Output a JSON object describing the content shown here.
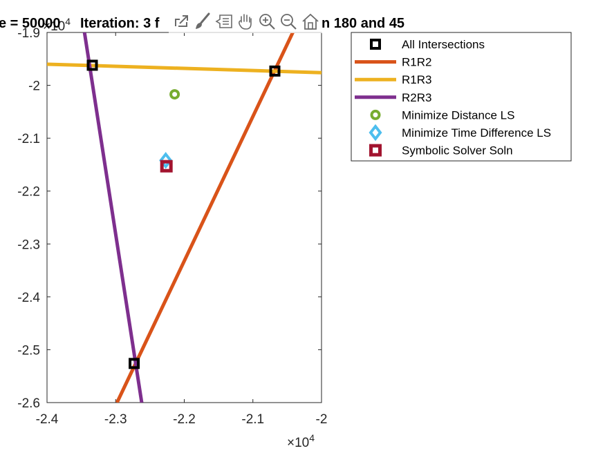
{
  "chart_data": {
    "type": "line",
    "title": "e = 50000 Iteration: 3 f n 180 and 45",
    "xlim": [
      -24000,
      -20000
    ],
    "ylim": [
      -26000,
      -19000
    ],
    "x_ticks": [
      -24000,
      -23000,
      -22000,
      -21000,
      -20000
    ],
    "y_ticks": [
      -26000,
      -25000,
      -24000,
      -23000,
      -22000,
      -21000,
      -20000,
      -19000
    ],
    "x_tick_labels": [
      "-2.4",
      "-2.3",
      "-2.2",
      "-2.1",
      "-2"
    ],
    "y_tick_labels": [
      "-2.6",
      "-2.5",
      "-2.4",
      "-2.3",
      "-2.2",
      "-2.1",
      "-2",
      "-1.9"
    ],
    "x_exponent": "×10^4",
    "y_exponent": "×10^4",
    "legend_location": "outside top-right",
    "series": [
      {
        "name": "R1R2",
        "type": "line",
        "color": "#D95319",
        "x": [
          -22980,
          -20400
        ],
        "y": [
          -26000,
          -18950
        ]
      },
      {
        "name": "R1R3",
        "type": "line",
        "color": "#EDB120",
        "x": [
          -24000,
          -20000
        ],
        "y": [
          -19600,
          -19760
        ]
      },
      {
        "name": "R2R3",
        "type": "line",
        "color": "#7E2F8E",
        "x": [
          -23460,
          -22620
        ],
        "y": [
          -18950,
          -26000
        ]
      },
      {
        "name": "All Intersections",
        "type": "marker",
        "marker": "square",
        "color": "#000000",
        "x": [
          -23340,
          -20680,
          -22730
        ],
        "y": [
          -19620,
          -19730,
          -25260
        ]
      },
      {
        "name": "Minimize Distance LS",
        "type": "marker",
        "marker": "circle",
        "color": "#77AC30",
        "x": [
          -22140
        ],
        "y": [
          -20170
        ]
      },
      {
        "name": "Minimize Time Difference LS",
        "type": "marker",
        "marker": "diamond",
        "color": "#4DBEEE",
        "x": [
          -22270
        ],
        "y": [
          -21420
        ]
      },
      {
        "name": "Symbolic Solver Soln",
        "type": "marker",
        "marker": "square",
        "color": "#A2142F",
        "x": [
          -22260
        ],
        "y": [
          -21530
        ]
      }
    ]
  },
  "legend": {
    "items": [
      {
        "label": "All Intersections",
        "kind": "square-marker",
        "color": "#000000"
      },
      {
        "label": "R1R2",
        "kind": "line",
        "color": "#D95319"
      },
      {
        "label": "R1R3",
        "kind": "line",
        "color": "#EDB120"
      },
      {
        "label": "R2R3",
        "kind": "line",
        "color": "#7E2F8E"
      },
      {
        "label": "Minimize Distance LS",
        "kind": "circle-marker",
        "color": "#77AC30"
      },
      {
        "label": "Minimize Time Difference LS",
        "kind": "diamond-marker",
        "color": "#4DBEEE"
      },
      {
        "label": "Symbolic Solver Soln",
        "kind": "square-marker",
        "color": "#A2142F"
      }
    ]
  },
  "title_parts": {
    "left": "e = 50000",
    "middle": "Iteration: 3 f",
    "right": "n 180 and 45"
  },
  "exponent_labels": {
    "base": "×10",
    "power": "4"
  },
  "toolbar": {
    "icons": [
      "export-icon",
      "brush-icon",
      "data-tips-icon",
      "pan-icon",
      "zoom-in-icon",
      "zoom-out-icon",
      "home-icon"
    ]
  }
}
